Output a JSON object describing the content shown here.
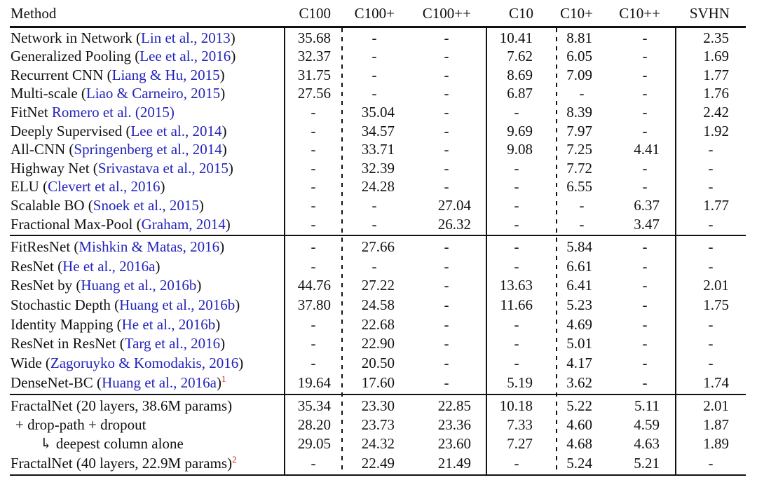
{
  "table": {
    "columns": [
      "Method",
      "C100",
      "C100+",
      "C100++",
      "C10",
      "C10+",
      "C10++",
      "SVHN"
    ],
    "colors": {
      "text": "#111111",
      "citation_blue": "#2424bc",
      "footnote_red": "#cc2200"
    },
    "sections": [
      {
        "rows": [
          {
            "pre": "Network in Network (",
            "cite": "Lin et al., 2013",
            "post": ")",
            "sup": "",
            "indent": 0,
            "cells": [
              "35.68",
              "-",
              "-",
              "10.41",
              "8.81",
              "-",
              "2.35"
            ]
          },
          {
            "pre": "Generalized Pooling (",
            "cite": "Lee et al., 2016",
            "post": ")",
            "sup": "",
            "indent": 0,
            "cells": [
              "32.37",
              "-",
              "-",
              "7.62",
              "6.05",
              "-",
              "1.69"
            ]
          },
          {
            "pre": "Recurrent CNN (",
            "cite": "Liang & Hu, 2015",
            "post": ")",
            "sup": "",
            "indent": 0,
            "cells": [
              "31.75",
              "-",
              "-",
              "8.69",
              "7.09",
              "-",
              "1.77"
            ]
          },
          {
            "pre": "Multi-scale (",
            "cite": "Liao & Carneiro, 2015",
            "post": ")",
            "sup": "",
            "indent": 0,
            "cells": [
              "27.56",
              "-",
              "-",
              "6.87",
              "-",
              "-",
              "1.76"
            ]
          },
          {
            "pre": "FitNet ",
            "cite": "Romero et al. (2015)",
            "post": "",
            "sup": "",
            "indent": 0,
            "cells": [
              "-",
              "35.04",
              "-",
              "-",
              "8.39",
              "-",
              "2.42"
            ]
          },
          {
            "pre": "Deeply Supervised (",
            "cite": "Lee et al., 2014",
            "post": ")",
            "sup": "",
            "indent": 0,
            "cells": [
              "-",
              "34.57",
              "-",
              "9.69",
              "7.97",
              "-",
              "1.92"
            ]
          },
          {
            "pre": "All-CNN (",
            "cite": "Springenberg et al., 2014",
            "post": ")",
            "sup": "",
            "indent": 0,
            "cells": [
              "-",
              "33.71",
              "-",
              "9.08",
              "7.25",
              "4.41",
              "-"
            ]
          },
          {
            "pre": "Highway Net (",
            "cite": "Srivastava et al., 2015",
            "post": ")",
            "sup": "",
            "indent": 0,
            "cells": [
              "-",
              "32.39",
              "-",
              "-",
              "7.72",
              "-",
              "-"
            ]
          },
          {
            "pre": "ELU (",
            "cite": "Clevert et al., 2016",
            "post": ")",
            "sup": "",
            "indent": 0,
            "cells": [
              "-",
              "24.28",
              "-",
              "-",
              "6.55",
              "-",
              "-"
            ]
          },
          {
            "pre": "Scalable BO (",
            "cite": "Snoek et al., 2015",
            "post": ")",
            "sup": "",
            "indent": 0,
            "cells": [
              "-",
              "-",
              "27.04",
              "-",
              "-",
              "6.37",
              "1.77"
            ]
          },
          {
            "pre": "Fractional Max-Pool (",
            "cite": "Graham, 2014",
            "post": ")",
            "sup": "",
            "indent": 0,
            "cells": [
              "-",
              "-",
              "26.32",
              "-",
              "-",
              "3.47",
              "-"
            ]
          }
        ]
      },
      {
        "rows": [
          {
            "pre": "FitResNet (",
            "cite": "Mishkin & Matas, 2016",
            "post": ")",
            "sup": "",
            "indent": 0,
            "cells": [
              "-",
              "27.66",
              "-",
              "-",
              "5.84",
              "-",
              "-"
            ]
          },
          {
            "pre": "ResNet (",
            "cite": "He et al., 2016a",
            "post": ")",
            "sup": "",
            "indent": 0,
            "cells": [
              "-",
              "-",
              "-",
              "-",
              "6.61",
              "-",
              "-"
            ]
          },
          {
            "pre": "ResNet by (",
            "cite": "Huang et al., 2016b",
            "post": ")",
            "sup": "",
            "indent": 0,
            "cells": [
              "44.76",
              "27.22",
              "-",
              "13.63",
              "6.41",
              "-",
              "2.01"
            ]
          },
          {
            "pre": "Stochastic Depth (",
            "cite": "Huang et al., 2016b",
            "post": ")",
            "sup": "",
            "indent": 0,
            "cells": [
              "37.80",
              "24.58",
              "-",
              "11.66",
              "5.23",
              "-",
              "1.75"
            ]
          },
          {
            "pre": "Identity Mapping (",
            "cite": "He et al., 2016b",
            "post": ")",
            "sup": "",
            "indent": 0,
            "cells": [
              "-",
              "22.68",
              "-",
              "-",
              "4.69",
              "-",
              "-"
            ]
          },
          {
            "pre": "ResNet in ResNet (",
            "cite": "Targ et al., 2016",
            "post": ")",
            "sup": "",
            "indent": 0,
            "cells": [
              "-",
              "22.90",
              "-",
              "-",
              "5.01",
              "-",
              "-"
            ]
          },
          {
            "pre": "Wide (",
            "cite": "Zagoruyko & Komodakis, 2016",
            "post": ")",
            "sup": "",
            "indent": 0,
            "cells": [
              "-",
              "20.50",
              "-",
              "-",
              "4.17",
              "-",
              "-"
            ]
          },
          {
            "pre": "DenseNet-BC (",
            "cite": "Huang et al., 2016a",
            "post": ")",
            "sup": "1",
            "indent": 0,
            "cells": [
              "19.64",
              "17.60",
              "-",
              "5.19",
              "3.62",
              "-",
              "1.74"
            ]
          }
        ]
      },
      {
        "rows": [
          {
            "pre": "FractalNet (20 layers, 38.6M params)",
            "cite": "",
            "post": "",
            "sup": "",
            "indent": 0,
            "cells": [
              "35.34",
              "23.30",
              "22.85",
              "10.18",
              "5.22",
              "5.11",
              "2.01"
            ]
          },
          {
            "pre": "+ drop-path + dropout",
            "cite": "",
            "post": "",
            "sup": "",
            "indent": 7,
            "cells": [
              "28.20",
              "23.73",
              "23.36",
              "7.33",
              "4.60",
              "4.59",
              "1.87"
            ]
          },
          {
            "pre": "↳ deepest column alone",
            "cite": "",
            "post": "",
            "sup": "",
            "indent": 42,
            "cells": [
              "29.05",
              "24.32",
              "23.60",
              "7.27",
              "4.68",
              "4.63",
              "1.89"
            ]
          },
          {
            "pre": "FractalNet (40 layers, 22.9M params)",
            "cite": "",
            "post": "",
            "sup": "2",
            "indent": 0,
            "cells": [
              "-",
              "22.49",
              "21.49",
              "-",
              "5.24",
              "5.21",
              "-"
            ]
          }
        ]
      }
    ]
  }
}
